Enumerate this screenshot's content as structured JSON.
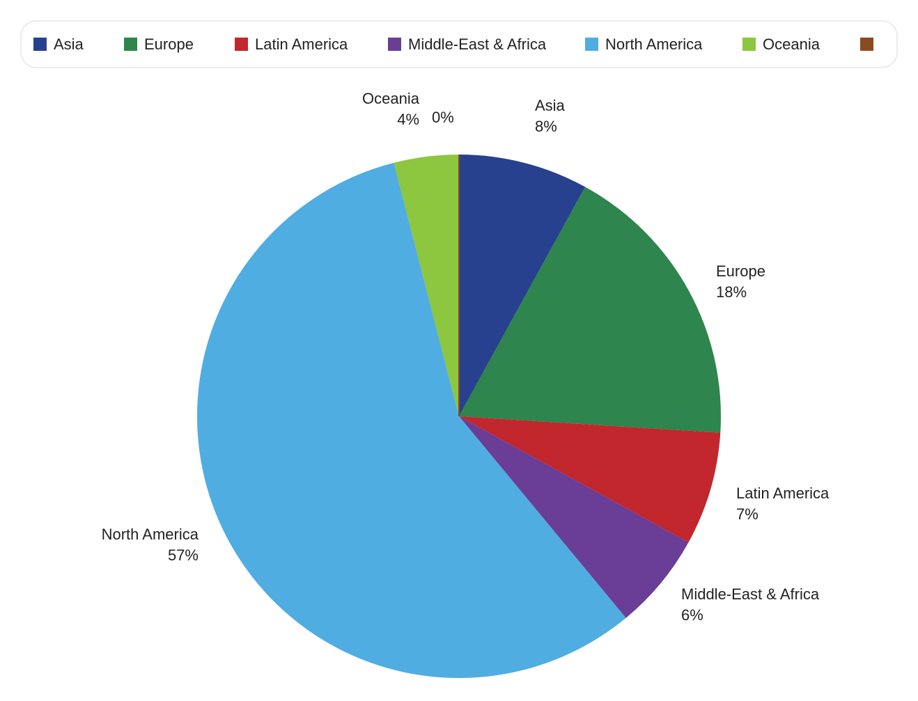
{
  "chart_data": {
    "type": "pie",
    "categories": [
      "Asia",
      "Europe",
      "Latin America",
      "Middle-East & Africa",
      "North America",
      "Oceania",
      null
    ],
    "values": [
      8,
      18,
      7,
      6,
      57,
      4,
      0
    ],
    "value_labels": [
      "8%",
      "18%",
      "7%",
      "6%",
      "57%",
      "4%",
      "0%"
    ],
    "colors": [
      "#27418f",
      "#2e854d",
      "#c1272d",
      "#6a3d96",
      "#4fade2",
      "#8dc63f",
      "#8b4a1f"
    ],
    "legend": "top"
  }
}
